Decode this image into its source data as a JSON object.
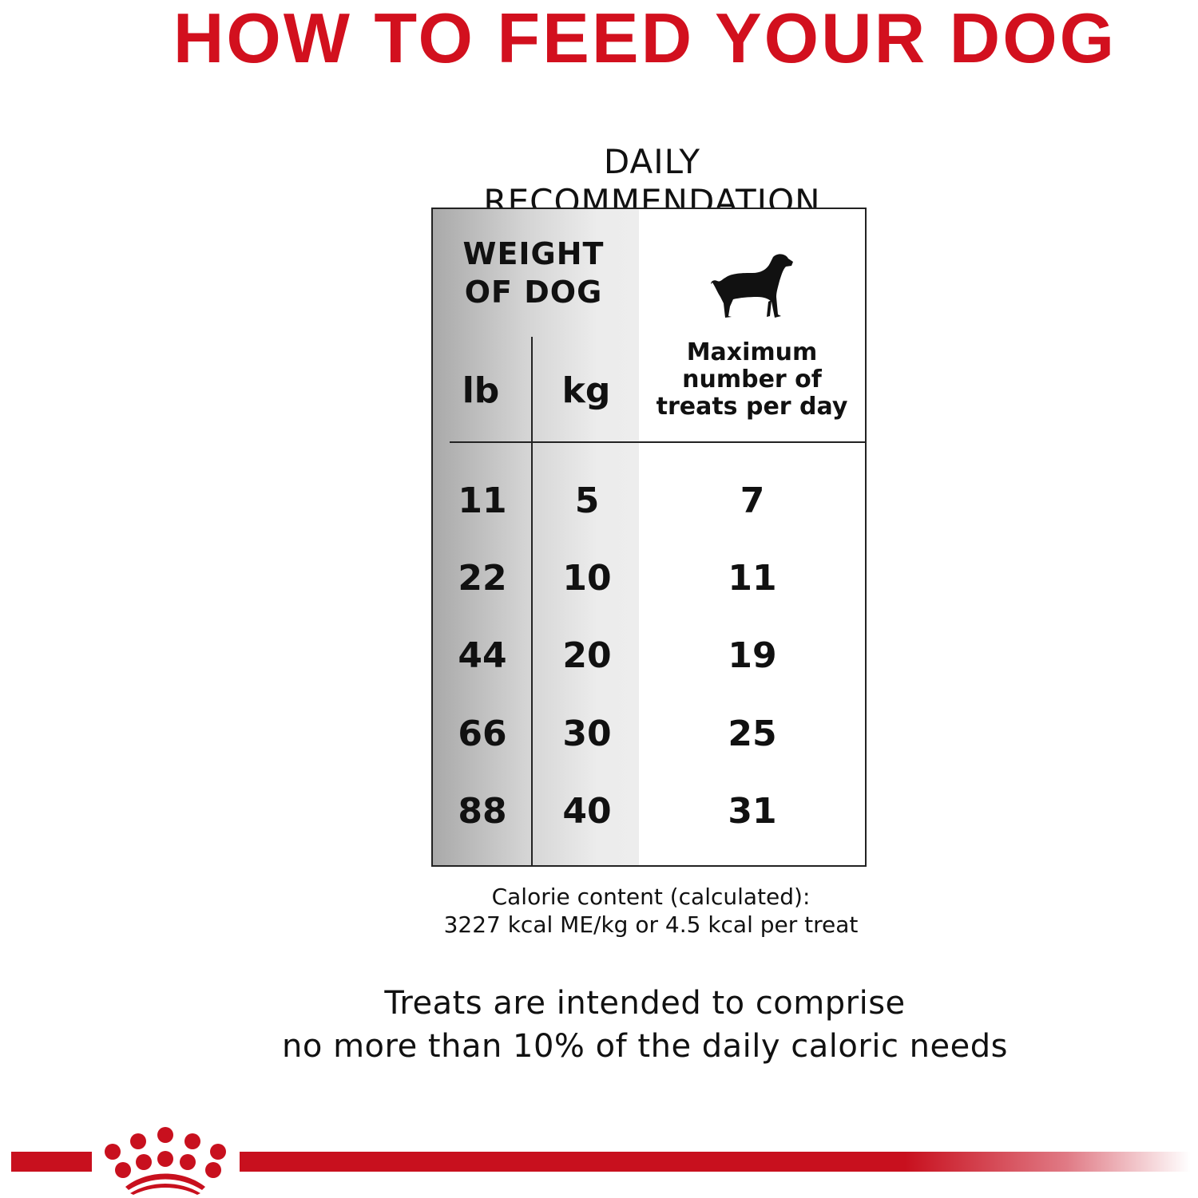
{
  "title": "HOW TO FEED YOUR DOG",
  "subtitle": "DAILY RECOMMENDATION",
  "table": {
    "weight_header_line1": "WEIGHT",
    "weight_header_line2": "OF DOG",
    "col_lb": "lb",
    "col_kg": "kg",
    "treats_header": [
      "Maximum",
      "number of",
      "treats per day"
    ],
    "dog_icon": "dog-silhouette-icon",
    "rows": [
      {
        "lb": "11",
        "kg": "5",
        "treats": "7"
      },
      {
        "lb": "22",
        "kg": "10",
        "treats": "11"
      },
      {
        "lb": "44",
        "kg": "20",
        "treats": "19"
      },
      {
        "lb": "66",
        "kg": "30",
        "treats": "25"
      },
      {
        "lb": "88",
        "kg": "40",
        "treats": "31"
      }
    ]
  },
  "calorie": {
    "line1": "Calorie content (calculated):",
    "line2": "3227 kcal ME/kg or 4.5 kcal per treat"
  },
  "note": {
    "line1": "Treats are intended to comprise",
    "line2": "no more than 10% of the daily caloric needs"
  },
  "brand": {
    "logo": "royal-crown-logo",
    "color": "#c8101e"
  }
}
